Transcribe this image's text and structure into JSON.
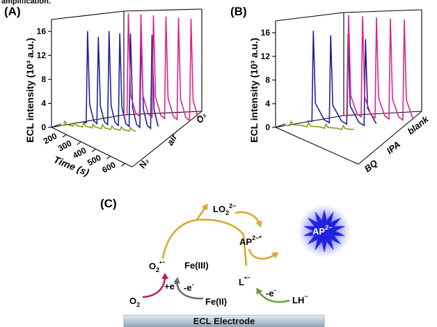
{
  "page": {
    "top_caption": "amplification."
  },
  "panels": {
    "A": {
      "label": "(A)"
    },
    "B": {
      "label": "(B)"
    },
    "C": {
      "label": "(C)"
    }
  },
  "chart_data": [
    {
      "type": "line",
      "panel": "A",
      "ylabel": "ECL intensity (10³ a.u.)",
      "xlabel": "Time (s)",
      "yticks": [
        0,
        4,
        8,
        12,
        16
      ],
      "ylim": [
        0,
        18
      ],
      "xticks": [
        200,
        300,
        400,
        500,
        600
      ],
      "xlim": [
        100,
        650
      ],
      "series": [
        {
          "name": "O₂",
          "color": "#e0218a",
          "peak_times": [
            330,
            400,
            460,
            520,
            580,
            640
          ],
          "peak_values": [
            17,
            17,
            17,
            17,
            17,
            17
          ]
        },
        {
          "name": "air",
          "color": "#1f1f9e",
          "peak_times": [
            200,
            270,
            330,
            400,
            460,
            520,
            580
          ],
          "peak_values": [
            15.3,
            14.5,
            15.6,
            15.4,
            15.5,
            15.3,
            15.6
          ]
        },
        {
          "name": "N₂",
          "color": "#8a9a1a",
          "peak_times": [
            130,
            200,
            260,
            330,
            400,
            460,
            520,
            580
          ],
          "peak_values": [
            0.7,
            0.6,
            0.7,
            0.6,
            0.7,
            0.6,
            0.6,
            0.6
          ]
        }
      ]
    },
    {
      "type": "line",
      "panel": "B",
      "ylabel": "ECL intensity (10³ a.u.)",
      "yticks": [
        0,
        4,
        8,
        12,
        16
      ],
      "ylim": [
        0,
        18
      ],
      "series": [
        {
          "name": "blank",
          "color": "#e0218a",
          "peak_values": [
            17,
            17,
            17,
            17,
            17
          ]
        },
        {
          "name": "IPA",
          "color": "#1f1f9e",
          "peak_values": [
            15.3,
            14.8,
            15.3,
            14.6
          ]
        },
        {
          "name": "BQ",
          "color": "#8a9a1a",
          "peak_values": [
            0.7,
            0.7,
            0.7,
            0.7
          ]
        }
      ]
    }
  ],
  "scheme": {
    "o2": "O",
    "o2_sub": "2",
    "superoxide": "O",
    "superoxide_sub": "2",
    "superoxide_sup": "•−",
    "lo2": "LO",
    "lo2_sub": "2",
    "lo2_sup": "2−",
    "ap_star": "AP",
    "ap_star_sup": "2−*",
    "ap": "AP",
    "ap_sup": "2−",
    "fe3": "Fe(III)",
    "fe2": "Fe(II)",
    "l_rad": "L",
    "l_rad_sup": "•−",
    "lh": "LH",
    "lh_sup": "−",
    "plus_e": "+e",
    "minus_e_1": "-e",
    "minus_e_2": "-e",
    "e_sup": "-",
    "electrode": "ECL  Electrode",
    "colors": {
      "gold": "#d9a82b",
      "magenta": "#c2185b",
      "gray": "#6b6b6b",
      "green": "#6aa03a",
      "star": "#2222dd"
    }
  }
}
